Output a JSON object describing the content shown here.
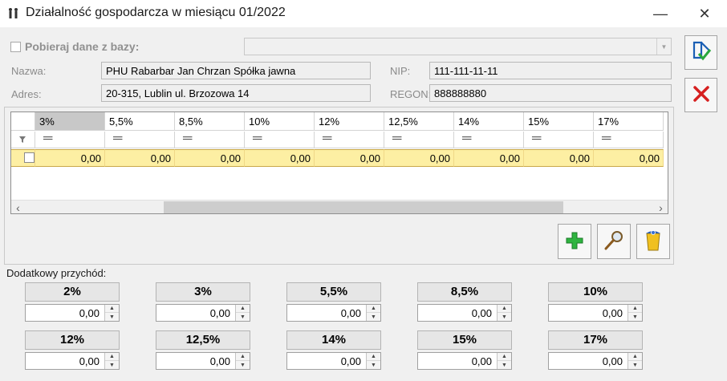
{
  "window": {
    "title": "Działalność gospodarcza w miesiącu 01/2022",
    "minimize": "—",
    "close": "✕"
  },
  "form": {
    "fetch_label": "Pobieraj dane z bazy:",
    "fetch_checked": false,
    "name_label": "Nazwa:",
    "name_value": "PHU Rabarbar Jan Chrzan Spółka jawna",
    "address_label": "Adres:",
    "address_value": "20-315, Lublin ul. Brzozowa 14",
    "nip_label": "NIP:",
    "nip_value": "111-111-11-11",
    "regon_label": "REGON:",
    "regon_value": "888888880"
  },
  "grid": {
    "columns": [
      "3%",
      "5,5%",
      "8,5%",
      "10%",
      "12%",
      "12,5%",
      "14%",
      "15%",
      "17%"
    ],
    "filter_symbol": "═",
    "rows": [
      {
        "checked": false,
        "values": [
          "0,00",
          "0,00",
          "0,00",
          "0,00",
          "0,00",
          "0,00",
          "0,00",
          "0,00",
          "0,00"
        ]
      }
    ],
    "scroll_left": "‹",
    "scroll_right": "›"
  },
  "extra": {
    "label": "Dodatkowy przychód:",
    "rates": [
      {
        "label": "2%",
        "value": "0,00"
      },
      {
        "label": "3%",
        "value": "0,00"
      },
      {
        "label": "5,5%",
        "value": "0,00"
      },
      {
        "label": "8,5%",
        "value": "0,00"
      },
      {
        "label": "10%",
        "value": "0,00"
      },
      {
        "label": "12%",
        "value": "0,00"
      },
      {
        "label": "12,5%",
        "value": "0,00"
      },
      {
        "label": "14%",
        "value": "0,00"
      },
      {
        "label": "15%",
        "value": "0,00"
      },
      {
        "label": "17%",
        "value": "0,00"
      }
    ]
  },
  "colors": {
    "selected_row": "#fdefa3",
    "save_icon": "#1a5fb4",
    "cancel_icon": "#d62020",
    "add_icon": "#27a33a",
    "delete_icon": "#e8b71a"
  }
}
